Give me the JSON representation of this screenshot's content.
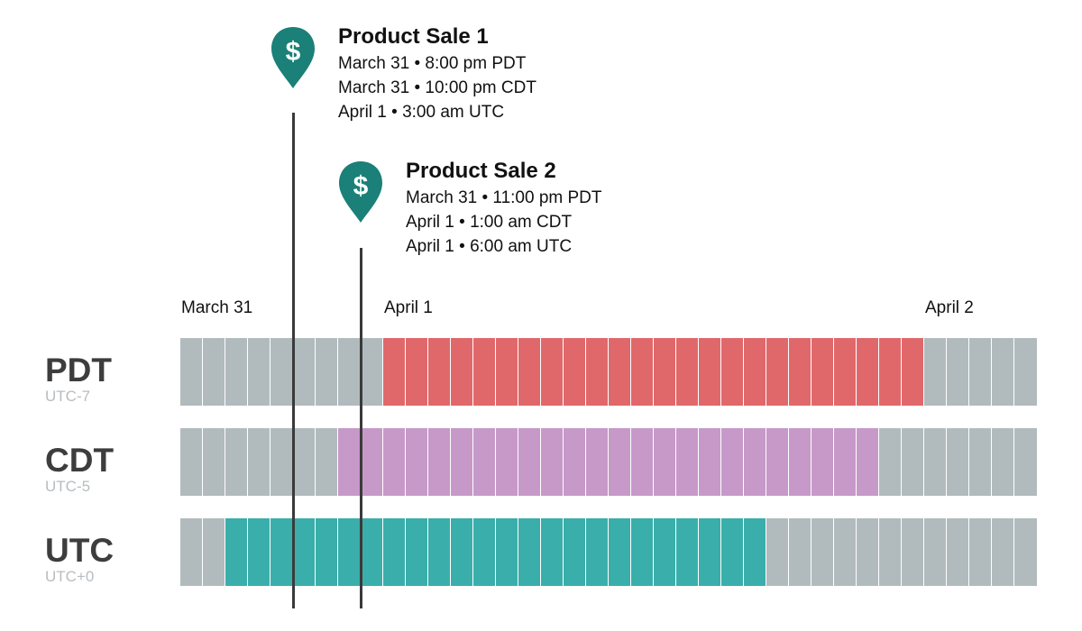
{
  "events": [
    {
      "title": "Product Sale 1",
      "lines": [
        "March 31 • 8:00 pm PDT",
        "March 31 • 10:00 pm CDT",
        "April 1 • 3:00 am UTC"
      ],
      "icon": "dollar-map-pin-icon",
      "utc_hour": 3
    },
    {
      "title": "Product Sale 2",
      "lines": [
        "March 31 • 11:00 pm PDT",
        "April 1 • 1:00 am CDT",
        "April 1 • 6:00 am UTC"
      ],
      "icon": "dollar-map-pin-icon",
      "utc_hour": 6
    }
  ],
  "date_labels": [
    "March 31",
    "April 1",
    "April 2"
  ],
  "timezones": [
    {
      "name": "PDT",
      "offset_label": "UTC-7",
      "utc_offset_hours": -7,
      "highlight_color": "#e0686b"
    },
    {
      "name": "CDT",
      "offset_label": "UTC-5",
      "utc_offset_hours": -5,
      "highlight_color": "#c699c9"
    },
    {
      "name": "UTC",
      "offset_label": "UTC+0",
      "utc_offset_hours": 0,
      "highlight_color": "#3aaeaa"
    }
  ],
  "colors": {
    "pin": "#1a8078",
    "gray_cell": "#b1bbbe",
    "cell_divider": "#ffffff",
    "marker_line": "#3a3a3a"
  }
}
